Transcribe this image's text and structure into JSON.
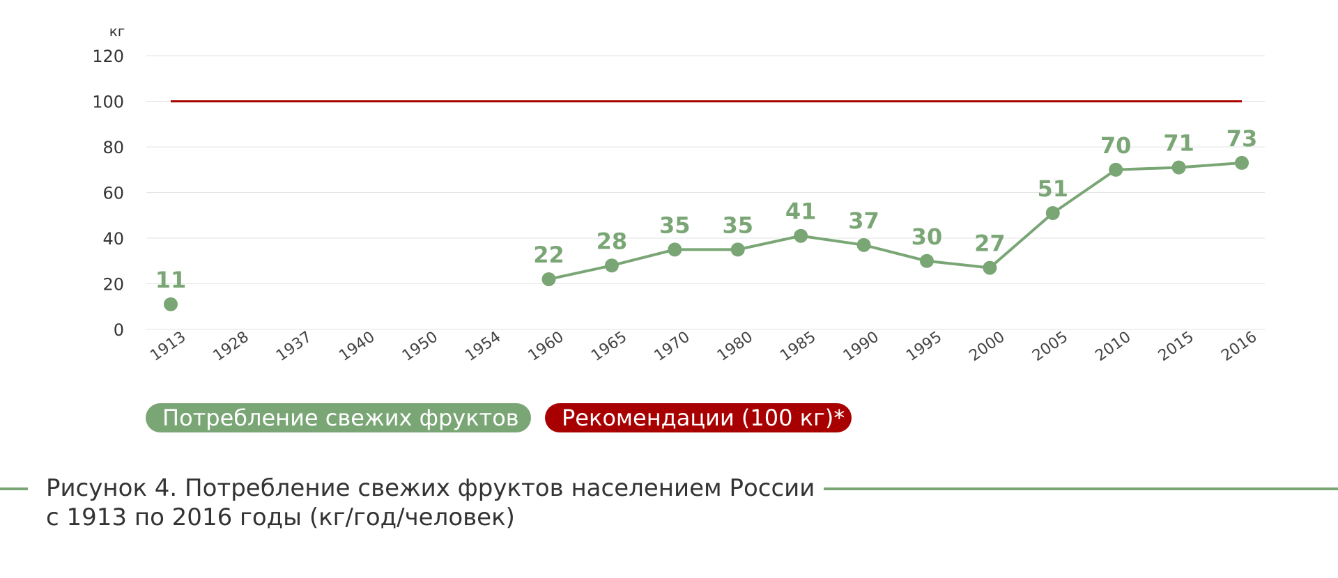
{
  "chart_data": {
    "type": "line",
    "unit_label": "кг",
    "categories": [
      "1913",
      "1928",
      "1937",
      "1940",
      "1950",
      "1954",
      "1960",
      "1965",
      "1970",
      "1980",
      "1985",
      "1990",
      "1995",
      "2000",
      "2005",
      "2010",
      "2015",
      "2016"
    ],
    "series": [
      {
        "name": "Потребление свежих фруктов",
        "color": "#7aa676",
        "values": [
          11,
          null,
          null,
          null,
          null,
          null,
          22,
          28,
          35,
          35,
          41,
          37,
          30,
          27,
          51,
          70,
          71,
          73
        ]
      },
      {
        "name": "Рекомендации (100 кг)*",
        "color": "#a80000",
        "values": [
          100,
          100,
          100,
          100,
          100,
          100,
          100,
          100,
          100,
          100,
          100,
          100,
          100,
          100,
          100,
          100,
          100,
          100
        ]
      }
    ],
    "ylim": [
      0,
      120
    ],
    "yticks": [
      0,
      20,
      40,
      60,
      80,
      100,
      120
    ],
    "grid": true,
    "legend_position": "bottom-left"
  },
  "caption": {
    "line1": "Рисунок 4. Потребление свежих фруктов населением России",
    "line2": "с 1913 по 2016 годы (кг/год/человек)"
  }
}
